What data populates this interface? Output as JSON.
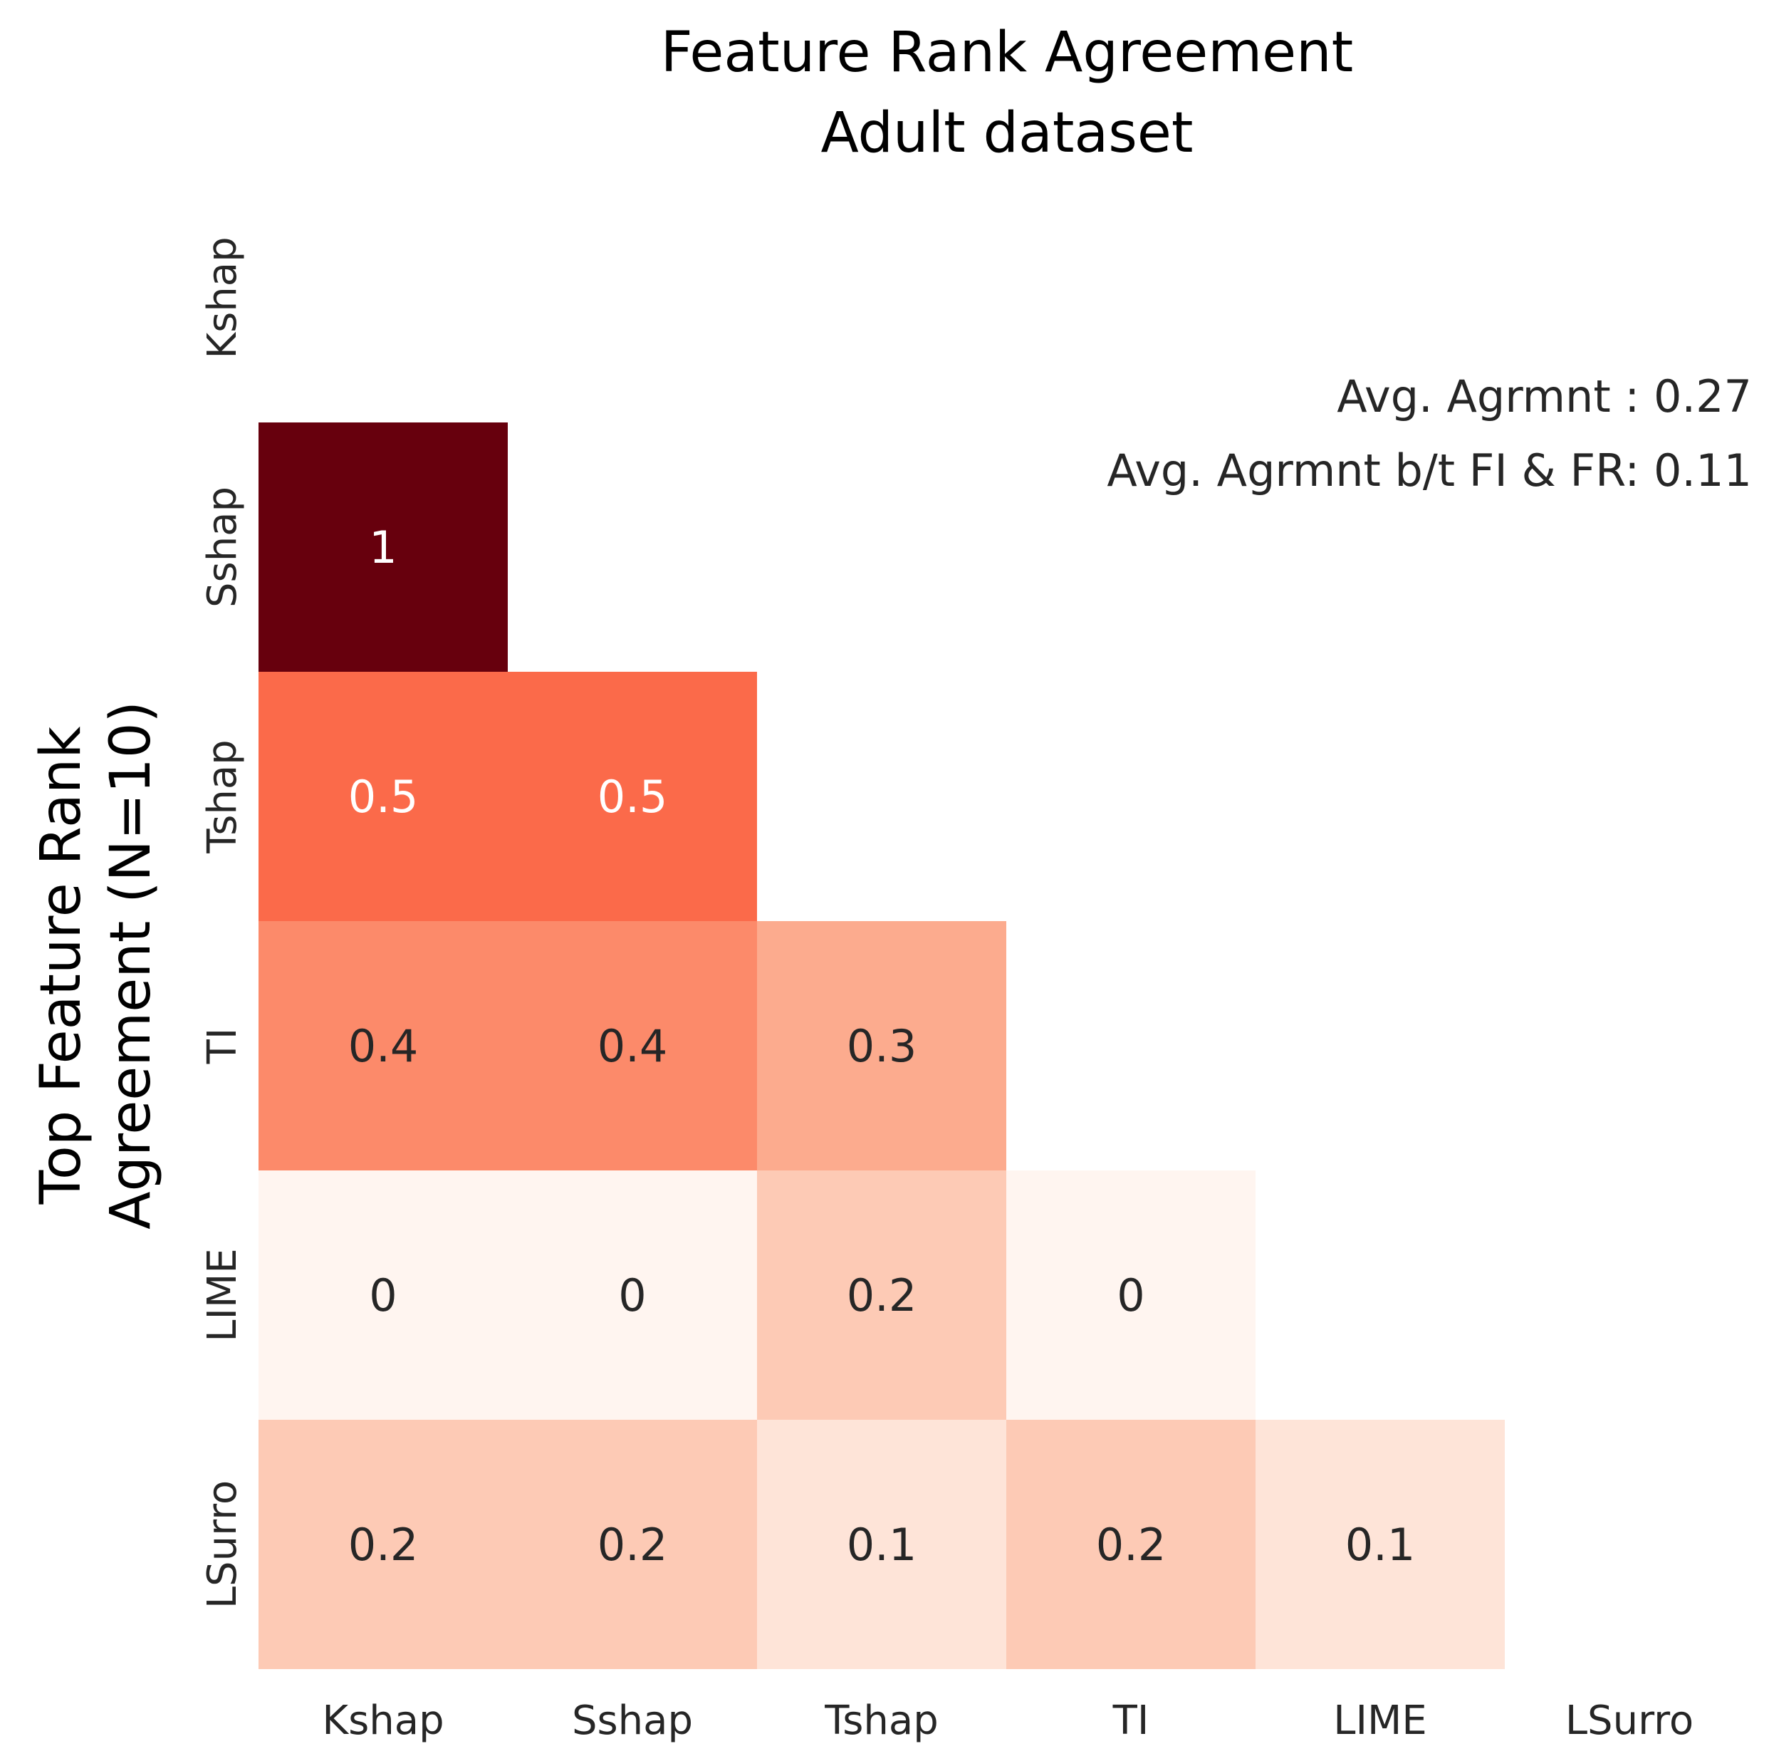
{
  "chart_data": {
    "type": "heatmap",
    "title": [
      "Feature Rank Agreement",
      "Adult dataset"
    ],
    "ylabel": [
      "Top Feature Rank",
      "Agreement (N=10)"
    ],
    "xlabel": "",
    "methods": [
      "Kshap",
      "Sshap",
      "Tshap",
      "TI",
      "LIME",
      "LSurro"
    ],
    "mask": "upper-triangle-including-diagonal",
    "matrix": [
      [
        null,
        null,
        null,
        null,
        null,
        null
      ],
      [
        1,
        null,
        null,
        null,
        null,
        null
      ],
      [
        0.5,
        0.5,
        null,
        null,
        null,
        null
      ],
      [
        0.4,
        0.4,
        0.3,
        null,
        null,
        null
      ],
      [
        0,
        0,
        0.2,
        0,
        null,
        null
      ],
      [
        0.2,
        0.2,
        0.1,
        0.2,
        0.1,
        null
      ]
    ],
    "value_range": [
      0,
      1
    ],
    "colormap": "Reds",
    "colorbar": false,
    "annotations": [
      "Avg. Agrmnt : 0.27",
      "Avg. Agrmnt b/t FI & FR: 0.11"
    ]
  }
}
